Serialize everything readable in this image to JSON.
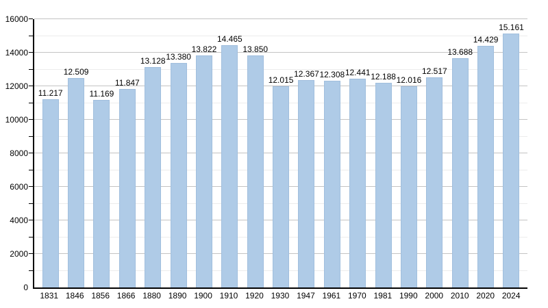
{
  "chart_data": {
    "type": "bar",
    "title": "",
    "xlabel": "",
    "ylabel": "",
    "categories": [
      "1831",
      "1846",
      "1856",
      "1866",
      "1880",
      "1890",
      "1900",
      "1910",
      "1920",
      "1930",
      "1947",
      "1961",
      "1970",
      "1981",
      "1990",
      "2000",
      "2010",
      "2020",
      "2024"
    ],
    "values": [
      11217,
      12509,
      11169,
      11847,
      13128,
      13380,
      13822,
      14465,
      13850,
      12015,
      12367,
      12308,
      12441,
      12188,
      12016,
      12517,
      13688,
      14429,
      15161
    ],
    "value_labels": [
      "11.217",
      "12.509",
      "11.169",
      "11.847",
      "13.128",
      "13.380",
      "13.822",
      "14.465",
      "13.850",
      "12.015",
      "12.367",
      "12.308",
      "12.441",
      "12.188",
      "12.016",
      "12.517",
      "13.688",
      "14.429",
      "15.161"
    ],
    "ylim": [
      0,
      16000
    ],
    "ytick_step": 2000,
    "yminor_step": 1000,
    "ytick_labels": [
      "16000",
      "14000",
      "12000",
      "10000",
      "8000",
      "6000",
      "4000",
      "2000",
      "0"
    ],
    "grid": true,
    "legend_position": "none",
    "colors": {
      "bar_fill": "#afcbe7",
      "bar_border": "#a0bedd",
      "grid_major": "#c3c3c3",
      "grid_minor": "#ececec",
      "axis": "#000000",
      "text": "#000000",
      "background": "#ffffff"
    }
  }
}
